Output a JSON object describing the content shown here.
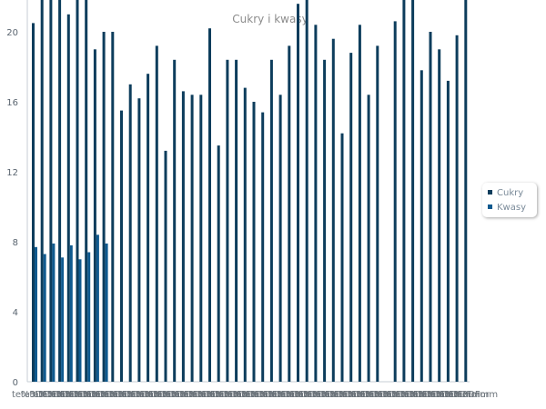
{
  "chart_data": {
    "type": "bar",
    "title": "Cukry i kwasy",
    "xlabel": "",
    "ylabel": "",
    "ylim": [
      0,
      22
    ],
    "yticks": [
      0,
      4,
      8,
      12,
      16,
      20
    ],
    "grid": false,
    "legend_position": "right",
    "category_labels_visible": "overlapping, illegible",
    "category_label_fragment": "te%3DForm",
    "categories": [
      "1",
      "2",
      "3",
      "4",
      "5",
      "6",
      "7",
      "8",
      "9",
      "10",
      "11",
      "12",
      "13",
      "14",
      "15",
      "16",
      "17",
      "18",
      "19",
      "20",
      "21",
      "22",
      "23",
      "24",
      "25",
      "26",
      "27",
      "28",
      "29",
      "30",
      "31",
      "32",
      "33",
      "34",
      "35",
      "36",
      "37",
      "38",
      "39",
      "40",
      "41",
      "42",
      "43",
      "44",
      "45",
      "46",
      "47",
      "48",
      "49",
      "50"
    ],
    "series": [
      {
        "name": "Cukry",
        "color": "#0d3d5c",
        "values": [
          20.5,
          22.0,
          22.0,
          22.0,
          21.0,
          22.0,
          22.0,
          19.0,
          20.0,
          20.0,
          15.5,
          17.0,
          16.2,
          17.6,
          19.2,
          13.2,
          18.4,
          16.6,
          16.4,
          16.4,
          20.2,
          13.5,
          18.4,
          18.4,
          16.8,
          16.0,
          15.4,
          18.4,
          16.4,
          19.2,
          21.6,
          22.0,
          20.4,
          18.4,
          19.6,
          14.2,
          18.8,
          20.4,
          16.4,
          19.2,
          null,
          20.6,
          22.0,
          22.0,
          17.8,
          20.0,
          19.0,
          17.2,
          19.8,
          22.0
        ]
      },
      {
        "name": "Kwasy",
        "color": "#0f5a8f",
        "values": [
          7.7,
          7.3,
          7.9,
          7.1,
          7.8,
          7.0,
          7.4,
          8.4,
          7.9,
          null,
          null,
          null,
          null,
          null,
          null,
          null,
          null,
          null,
          null,
          null,
          null,
          null,
          null,
          null,
          null,
          null,
          null,
          null,
          null,
          null,
          null,
          null,
          null,
          null,
          null,
          null,
          null,
          null,
          null,
          null,
          null,
          null,
          null,
          null,
          null,
          null,
          null,
          null,
          null,
          null
        ]
      }
    ]
  }
}
